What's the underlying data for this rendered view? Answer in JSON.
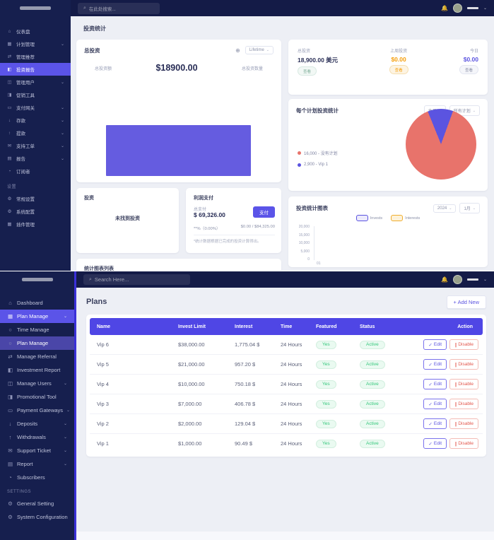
{
  "colors": {
    "sidebar_bg": "#161f4e",
    "navbar_bg": "#141b47",
    "accent": "#5b54e8",
    "content_bg": "#edeff5",
    "table_header_bg": "#4f46e5",
    "bar": "#655ce0",
    "pie_red": "#e8736b",
    "pie_purple": "#5b54e0",
    "orange": "#f59e0b",
    "green": "#34c77b",
    "danger": "#e2574d"
  },
  "top": {
    "header": {
      "search_placeholder": "在此处搜索..."
    },
    "sidebar": {
      "items": [
        {
          "id": "dashboard",
          "label": "仪表盘",
          "icon": "home-icon",
          "glyph": "⌂"
        },
        {
          "id": "plan-manage",
          "label": "计划管理",
          "icon": "grid-icon",
          "glyph": "▦",
          "chevron": true
        },
        {
          "id": "manage-referral",
          "label": "管理推荐",
          "icon": "referral-icon",
          "glyph": "⇄"
        },
        {
          "id": "investment-report",
          "label": "投资报告",
          "icon": "report-chart-icon",
          "glyph": "◧",
          "active": true
        },
        {
          "id": "manage-users",
          "label": "管理用户",
          "icon": "users-icon",
          "glyph": "◫",
          "chevron": true
        },
        {
          "id": "promotional-tool",
          "label": "促销工具",
          "icon": "megaphone-icon",
          "glyph": "◨"
        },
        {
          "id": "payment-gateways",
          "label": "支付网关",
          "icon": "card-icon",
          "glyph": "▭",
          "chevron": true
        },
        {
          "id": "deposits",
          "label": "存款",
          "icon": "deposit-icon",
          "glyph": "↓",
          "chevron": true
        },
        {
          "id": "withdrawals",
          "label": "提款",
          "icon": "withdraw-icon",
          "glyph": "↑",
          "chevron": true
        },
        {
          "id": "support-ticket",
          "label": "支持工单",
          "icon": "ticket-icon",
          "glyph": "✉",
          "chevron": true
        },
        {
          "id": "report",
          "label": "报告",
          "icon": "doc-icon",
          "glyph": "▤",
          "chevron": true
        },
        {
          "id": "subscribers",
          "label": "订阅者",
          "icon": "subscribers-icon",
          "glyph": "◔"
        }
      ],
      "section_label": "设置",
      "settings_items": [
        {
          "id": "general-setting",
          "label": "常规设置",
          "icon": "gear-icon",
          "glyph": "⚙"
        },
        {
          "id": "system-configuration",
          "label": "系统配置",
          "icon": "gear-icon",
          "glyph": "⚙"
        },
        {
          "id": "plugin-manage",
          "label": "插件管理",
          "icon": "grid-icon",
          "glyph": "▦"
        }
      ]
    },
    "page_title": "投资统计",
    "invest_card": {
      "title": "总投资",
      "filter": "Lifetime",
      "stat_left": "总投资额",
      "stat_value": "$18900.00",
      "stat_right": "总投资数量"
    },
    "summary_card": {
      "cols": [
        {
          "label": "总投资",
          "value": "18,900.00 美元",
          "badge": "查看",
          "tone": "dark"
        },
        {
          "label": "上周投资",
          "value": "$0.00",
          "badge": "查看",
          "tone": "orange"
        },
        {
          "label": "今日",
          "value": "$0.00",
          "badge": "查看",
          "tone": "purple"
        }
      ]
    },
    "pie_card": {
      "title": "每个计划投资统计",
      "filters": [
        "本月",
        "所有计划"
      ],
      "legend": [
        {
          "label": "16,000 - 没有计划",
          "color": "#e8736b"
        },
        {
          "label": "2,900 - Vip 1",
          "color": "#5b54e0"
        }
      ]
    },
    "invest_list_card": {
      "title": "投资",
      "empty": "未找到投资"
    },
    "profit_card": {
      "title": "利润支付",
      "label": "总支付",
      "value": "$ 69,326.00",
      "button": "支付",
      "sub_left": "**%（0.00%）",
      "sub_right": "$0.00 / $84,325.00",
      "footnote": "*统计数据根据已完成的投资计算得出。"
    },
    "chart_strip": {
      "title": "统计图表列表"
    },
    "chart_card": {
      "title": "投资统计图表",
      "filters": [
        "2024",
        "1月"
      ],
      "legend": [
        {
          "label": "Invests",
          "tone": "invests"
        },
        {
          "label": "Interests",
          "tone": "interests"
        }
      ],
      "yticks": [
        "20,000",
        "15,000",
        "10,000",
        "5,000",
        "0"
      ],
      "xtick": "01"
    }
  },
  "bottom": {
    "header": {
      "search_placeholder": "Search Here..."
    },
    "sidebar": {
      "items": [
        {
          "id": "dashboard",
          "label": "Dashboard",
          "icon": "home-icon",
          "glyph": "⌂"
        },
        {
          "id": "plan-manage",
          "label": "Plan Manage",
          "icon": "grid-icon",
          "glyph": "▦",
          "chevron": true,
          "active": true
        },
        {
          "id": "time-manage",
          "label": "Time Manage",
          "icon": "dot-icon",
          "glyph": "○",
          "sub": true
        },
        {
          "id": "plan-manage-sub",
          "label": "Plan Manage",
          "icon": "dot-icon",
          "glyph": "○",
          "sub": true,
          "sub_active": true
        },
        {
          "id": "manage-referral",
          "label": "Manage Referral",
          "icon": "referral-icon",
          "glyph": "⇄"
        },
        {
          "id": "investment-report",
          "label": "Investment Report",
          "icon": "report-chart-icon",
          "glyph": "◧"
        },
        {
          "id": "manage-users",
          "label": "Manage Users",
          "icon": "users-icon",
          "glyph": "◫",
          "chevron": true
        },
        {
          "id": "promotional-tool",
          "label": "Promotional Tool",
          "icon": "megaphone-icon",
          "glyph": "◨"
        },
        {
          "id": "payment-gateways",
          "label": "Payment Gateways",
          "icon": "card-icon",
          "glyph": "▭",
          "chevron": true
        },
        {
          "id": "deposits",
          "label": "Deposits",
          "icon": "deposit-icon",
          "glyph": "↓",
          "chevron": true
        },
        {
          "id": "withdrawals",
          "label": "Withdrawals",
          "icon": "withdraw-icon",
          "glyph": "↑",
          "chevron": true
        },
        {
          "id": "support-ticket",
          "label": "Support Ticket",
          "icon": "ticket-icon",
          "glyph": "✉",
          "chevron": true
        },
        {
          "id": "report",
          "label": "Report",
          "icon": "doc-icon",
          "glyph": "▤",
          "chevron": true
        },
        {
          "id": "subscribers",
          "label": "Subscribers",
          "icon": "subscribers-icon",
          "glyph": "◔"
        }
      ],
      "section_label": "Settings",
      "settings_items": [
        {
          "id": "general-setting",
          "label": "General Setting",
          "icon": "gear-icon",
          "glyph": "⚙"
        },
        {
          "id": "system-configuration",
          "label": "System Configuration",
          "icon": "gear-icon",
          "glyph": "⚙"
        }
      ]
    },
    "page": {
      "title": "Plans",
      "add_button": "+ Add New"
    },
    "table": {
      "columns": [
        "Name",
        "Invest Limit",
        "Interest",
        "Time",
        "Featured",
        "Status",
        "Action"
      ],
      "edit_label": "Edit",
      "disable_label": "Disable",
      "rows": [
        {
          "name": "Vip 6",
          "invest_limit": "$38,000.00",
          "interest": "1,775.04 $",
          "time": "24 Hours",
          "featured": "Yes",
          "status": "Active"
        },
        {
          "name": "Vip 5",
          "invest_limit": "$21,000.00",
          "interest": "957.20 $",
          "time": "24 Hours",
          "featured": "Yes",
          "status": "Active"
        },
        {
          "name": "Vip 4",
          "invest_limit": "$10,000.00",
          "interest": "750.18 $",
          "time": "24 Hours",
          "featured": "Yes",
          "status": "Active"
        },
        {
          "name": "Vip 3",
          "invest_limit": "$7,000.00",
          "interest": "406.78 $",
          "time": "24 Hours",
          "featured": "Yes",
          "status": "Active"
        },
        {
          "name": "Vip 2",
          "invest_limit": "$2,000.00",
          "interest": "129.04 $",
          "time": "24 Hours",
          "featured": "Yes",
          "status": "Active"
        },
        {
          "name": "Vip 1",
          "invest_limit": "$1,000.00",
          "interest": "90.49 $",
          "time": "24 Hours",
          "featured": "Yes",
          "status": "Active"
        }
      ]
    }
  },
  "chart_data": [
    {
      "type": "bar",
      "title": "总投资 (Lifetime)",
      "categories": [
        "总投资"
      ],
      "values": [
        18900
      ],
      "ylabel": "",
      "color": "#655ce0"
    },
    {
      "type": "pie",
      "title": "每个计划投资统计",
      "labels": [
        "没有计划",
        "Vip 1"
      ],
      "values": [
        16000,
        2900
      ],
      "colors": [
        "#e8736b",
        "#5b54e0"
      ],
      "legend_position": "left"
    },
    {
      "type": "line",
      "title": "投资统计图表",
      "series": [
        {
          "name": "Invests",
          "values": []
        },
        {
          "name": "Interests",
          "values": []
        }
      ],
      "ylim": [
        0,
        20000
      ],
      "yticks": [
        20000,
        15000,
        10000,
        5000,
        0
      ],
      "xticks": [
        "01"
      ],
      "note": "no data plotted"
    }
  ]
}
